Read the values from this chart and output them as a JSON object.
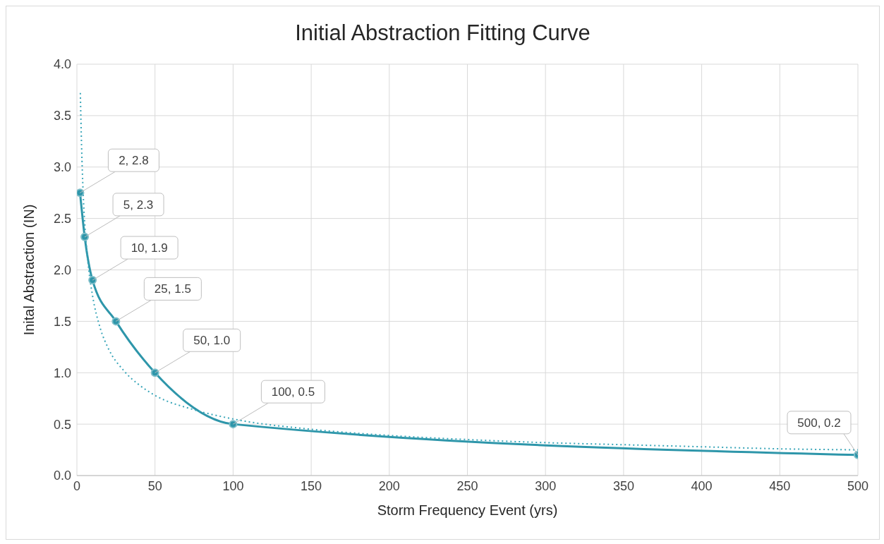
{
  "chart_data": {
    "type": "line",
    "title": "Initial Abstraction Fitting Curve",
    "xlabel": "Storm  Frequency Event (yrs)",
    "ylabel": "Inital Abstraction (IN)",
    "xlim": [
      0,
      500
    ],
    "xticks": [
      0,
      50,
      100,
      150,
      200,
      250,
      300,
      350,
      400,
      450,
      500
    ],
    "ylim": [
      0,
      4
    ],
    "yticks": [
      {
        "value": 0,
        "label": "0.0"
      },
      {
        "value": 0.5,
        "label": "0.5"
      },
      {
        "value": 1,
        "label": "1.0"
      },
      {
        "value": 1.5,
        "label": "1.5"
      },
      {
        "value": 2,
        "label": "2.0"
      },
      {
        "value": 2.5,
        "label": "2.5"
      },
      {
        "value": 3,
        "label": "3.0"
      },
      {
        "value": 3.5,
        "label": "3.5"
      },
      {
        "value": 4,
        "label": "4.0"
      }
    ],
    "grid": true,
    "series": [
      {
        "color": "#2e96aa",
        "marker": "circle",
        "line_style": "solid",
        "x": [
          2,
          5,
          10,
          25,
          50,
          100,
          500
        ],
        "values": [
          2.75,
          2.32,
          1.9,
          1.5,
          1.0,
          0.5,
          0.2
        ],
        "value_labels": [
          "2, 2.8",
          "5, 2.3",
          "10, 1.9",
          "25, 1.5",
          "50, 1.0",
          "100, 0.5",
          "500, 0.2"
        ]
      },
      {
        "color": "#3aa6b9",
        "marker": "none",
        "line_style": "dotted",
        "x": [
          2.2,
          3,
          4,
          6,
          8,
          10,
          15,
          20,
          30,
          40,
          50,
          75,
          100,
          150,
          200,
          250,
          300,
          350,
          400,
          450,
          500
        ],
        "values": [
          3.72,
          3.2,
          2.75,
          2.25,
          1.95,
          1.75,
          1.43,
          1.24,
          1.02,
          0.88,
          0.78,
          0.64,
          0.55,
          0.45,
          0.39,
          0.35,
          0.32,
          0.3,
          0.28,
          0.26,
          0.25
        ]
      }
    ]
  }
}
